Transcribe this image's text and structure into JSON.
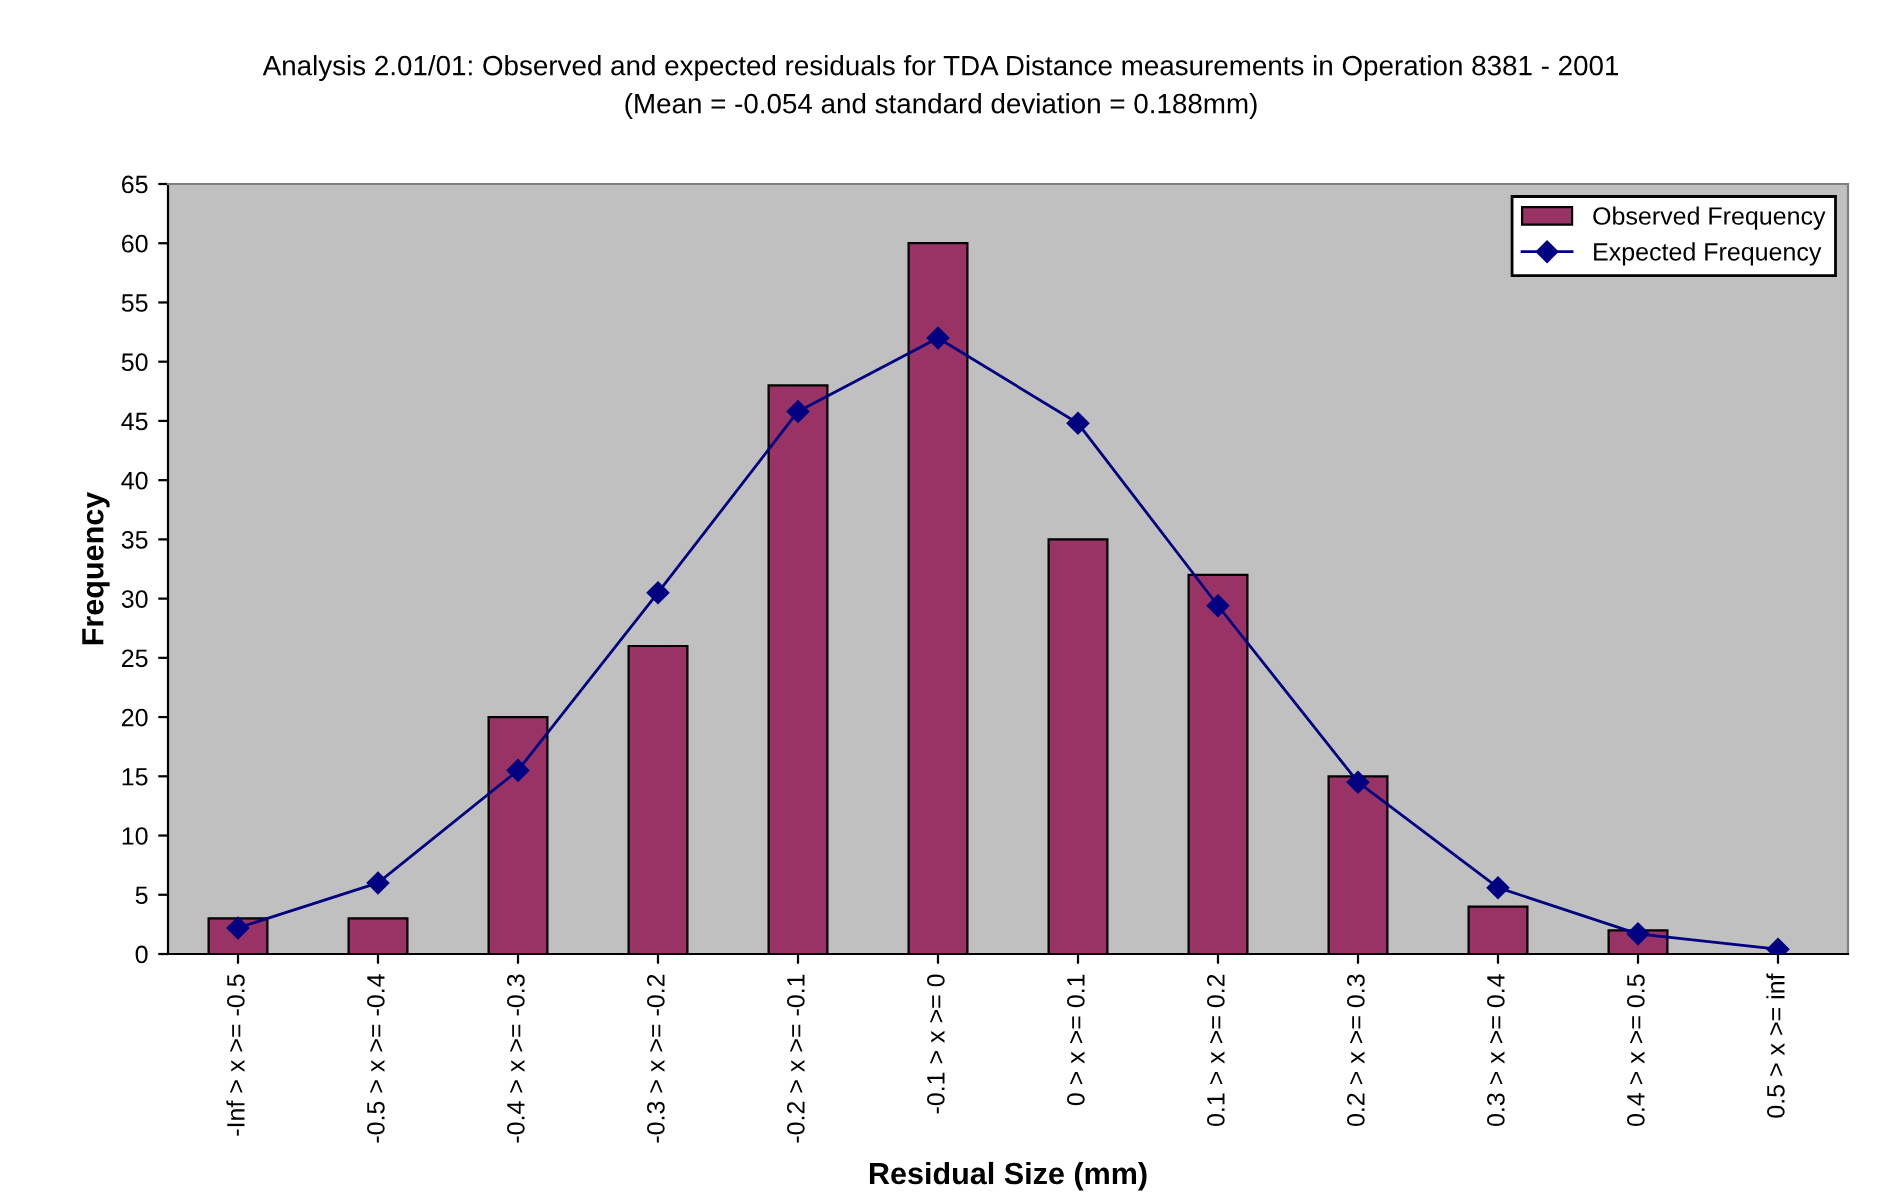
{
  "chart_data": {
    "type": "bar",
    "title": "Analysis 2.01/01: Observed and expected residuals for TDA Distance measurements in Operation 8381 - 2001",
    "subtitle": "(Mean = -0.054 and standard deviation = 0.188mm)",
    "xlabel": "Residual Size (mm)",
    "ylabel": "Frequency",
    "categories": [
      "-Inf > x >= -0.5",
      "-0.5 > x >= -0.4",
      "-0.4 > x >= -0.3",
      "-0.3 > x >= -0.2",
      "-0.2 > x >= -0.1",
      "-0.1 > x >= 0",
      "0 > x >= 0.1",
      "0.1 > x >= 0.2",
      "0.2 > x >= 0.3",
      "0.3 > x >= 0.4",
      "0.4 > x >= 0.5",
      "0.5 > x >= inf"
    ],
    "series": [
      {
        "name": "Observed Frequency",
        "color": "#993366",
        "values": [
          3,
          3,
          20,
          26,
          48,
          60,
          35,
          32,
          15,
          4,
          2,
          0
        ]
      },
      {
        "name": "Expected Frequency",
        "type": "line",
        "color": "#000080",
        "marker": "diamond",
        "values": [
          2.2,
          6,
          15.5,
          30.5,
          45.8,
          52,
          44.8,
          29.4,
          14.5,
          5.6,
          1.7,
          0.4
        ]
      }
    ],
    "ylim": [
      0,
      65
    ],
    "yticks": [
      0,
      5,
      10,
      15,
      20,
      25,
      30,
      35,
      40,
      45,
      50,
      55,
      60,
      65
    ],
    "grid": false,
    "legend": "top right"
  }
}
